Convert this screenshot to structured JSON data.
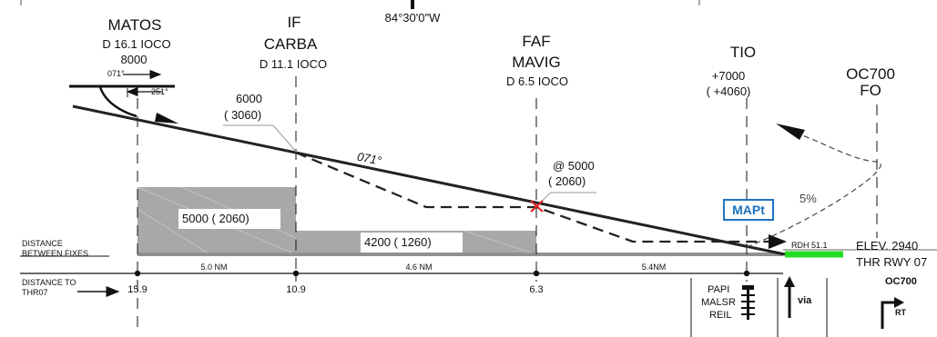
{
  "top": {
    "longitude": "84°30'0\"W"
  },
  "fixes": {
    "matos": {
      "name": "MATOS",
      "distance": "D 16.1 IOCO",
      "altitude": "8000",
      "course_out": "071°",
      "course_in": "251°"
    },
    "carba": {
      "role": "IF",
      "name": "CARBA",
      "distance": "D 11.1 IOCO"
    },
    "mavig": {
      "role": "FAF",
      "name": "MAVIG",
      "distance": "D 6.5 IOCO"
    },
    "tio": {
      "name": "TIO",
      "altitude": "+7000",
      "height": "( +4060)"
    },
    "oc700": {
      "name": "OC700",
      "type": "FO"
    }
  },
  "profile": {
    "alt_carba": "6000",
    "hgt_carba": "( 3060)",
    "track": "071°",
    "alt_faf": "@ 5000",
    "hgt_faf": "( 2060)",
    "climb_gradient": "5%",
    "mapt": "MAPt",
    "rdh": "RDH 51.1",
    "elevation": "ELEV. 2940",
    "threshold": "THR RWY 07"
  },
  "msa_boxes": {
    "segment1": "5000 (  2060)",
    "segment2": "4200 (  1260)"
  },
  "distances": {
    "between_label_1": "DISTANCE",
    "between_label_2": "BETWEEN FIXES",
    "to_label_1": "DISTANCE TO",
    "to_label_2": "THR07",
    "segments": [
      "5.0 NM",
      "4.6 NM",
      "5.4NM"
    ],
    "to_threshold": [
      "15.9",
      "10.9",
      "6.3"
    ]
  },
  "lighting": {
    "papi": "PAPI",
    "malsr": "MALSR",
    "reil": "REIL"
  },
  "missed_approach": {
    "via": "via",
    "fix": "OC700",
    "turn": "RT"
  },
  "colors": {
    "mapt_blue": "#1e73be",
    "runway_green": "#22dd22",
    "faf_red": "#e02020",
    "terrain_grey": "#a8a8a8"
  }
}
